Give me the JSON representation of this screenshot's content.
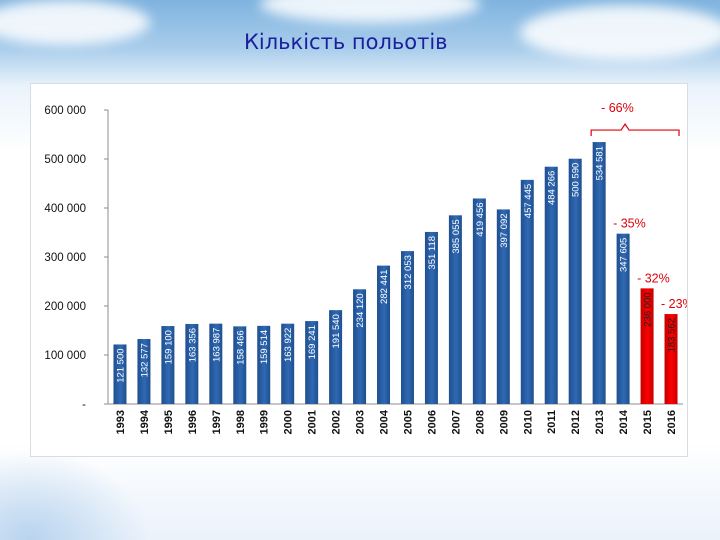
{
  "title": "Кількість польотів",
  "chart_data": {
    "type": "bar",
    "categories": [
      "1993",
      "1994",
      "1995",
      "1996",
      "1997",
      "1998",
      "1999",
      "2000",
      "2001",
      "2002",
      "2003",
      "2004",
      "2005",
      "2006",
      "2007",
      "2008",
      "2009",
      "2010",
      "2011",
      "2012",
      "2013",
      "2014",
      "2015",
      "2016"
    ],
    "values": [
      121500,
      132577,
      159100,
      163356,
      163987,
      158466,
      159514,
      163922,
      169241,
      191540,
      234120,
      282441,
      312053,
      351118,
      385055,
      419456,
      397092,
      457445,
      484266,
      500590,
      534581,
      347605,
      236000,
      183562
    ],
    "value_labels": [
      "121 500",
      "132 577",
      "159 100",
      "163 356",
      "163 987",
      "158 466",
      "159 514",
      "163 922",
      "169 241",
      "191 540",
      "234 120",
      "282 441",
      "312 053",
      "351 118",
      "385 055",
      "419 456",
      "397 092",
      "457 445",
      "484 266",
      "500 590",
      "534 581",
      "347 605",
      "236 000",
      "183 562"
    ],
    "highlighted": [
      "2015",
      "2016"
    ],
    "ylim": [
      0,
      600000
    ],
    "yticks": [
      0,
      100000,
      200000,
      300000,
      400000,
      500000,
      600000
    ],
    "ytick_labels": [
      "-",
      "100 000",
      "200 000",
      "300 000",
      "400 000",
      "500 000",
      "600 000"
    ],
    "colors": {
      "bar": "#2f69b3",
      "highlight": "#ff0000",
      "annotation": "#e0000b"
    },
    "annotations": [
      {
        "text": "- 66%",
        "from": "2013",
        "to": "2016"
      },
      {
        "text": "- 35%",
        "at": "2014"
      },
      {
        "text": "- 32%",
        "at": "2015"
      },
      {
        "text": "- 23%",
        "at": "2016"
      }
    ],
    "grid": false,
    "legend": "none"
  }
}
